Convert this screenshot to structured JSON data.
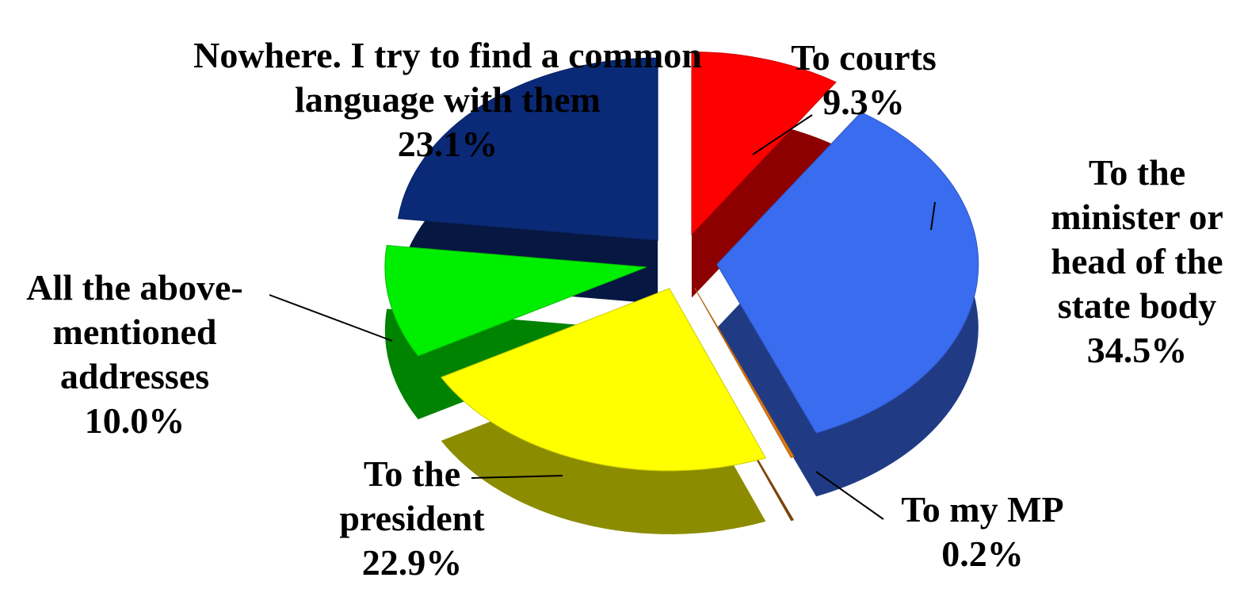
{
  "chart_data": {
    "type": "pie",
    "categories": [
      "To courts",
      "To the minister or head of the state body",
      "To my MP",
      "To the president",
      "All the above-mentioned addresses",
      "Nowhere. I try to find a common language with them"
    ],
    "values": [
      9.3,
      34.5,
      0.2,
      22.9,
      10.0,
      23.1
    ],
    "value_labels": [
      "9.3%",
      "34.5%",
      "0.2%",
      "22.9%",
      "10.0%",
      "23.1%"
    ],
    "colors": [
      "#ff0000",
      "#3a6cf0",
      "#e07a10",
      "#ffff00",
      "#00ee00",
      "#0a2a78"
    ]
  }
}
